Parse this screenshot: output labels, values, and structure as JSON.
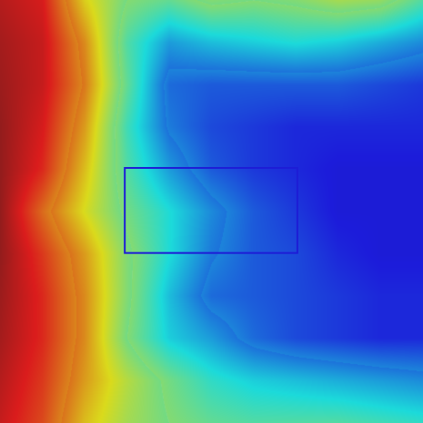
{
  "chart_data": {
    "type": "heatmap",
    "colormap": "jet",
    "value_range": [
      0,
      1
    ],
    "grid": false,
    "legend": "none",
    "rows": 11,
    "cols": 11,
    "values": [
      [
        0.92,
        0.88,
        0.64,
        0.5,
        0.46,
        0.52,
        0.5,
        0.52,
        0.56,
        0.54,
        0.44
      ],
      [
        0.94,
        0.9,
        0.72,
        0.44,
        0.3,
        0.34,
        0.36,
        0.38,
        0.36,
        0.32,
        0.28
      ],
      [
        0.95,
        0.9,
        0.74,
        0.46,
        0.22,
        0.2,
        0.2,
        0.2,
        0.2,
        0.18,
        0.16
      ],
      [
        0.96,
        0.88,
        0.7,
        0.42,
        0.24,
        0.18,
        0.16,
        0.14,
        0.14,
        0.14,
        0.14
      ],
      [
        0.96,
        0.86,
        0.66,
        0.44,
        0.3,
        0.2,
        0.16,
        0.14,
        0.12,
        0.12,
        0.12
      ],
      [
        0.96,
        0.78,
        0.62,
        0.48,
        0.38,
        0.28,
        0.2,
        0.16,
        0.12,
        0.12,
        0.12
      ],
      [
        0.96,
        0.84,
        0.7,
        0.52,
        0.38,
        0.26,
        0.2,
        0.18,
        0.14,
        0.12,
        0.12
      ],
      [
        0.95,
        0.86,
        0.72,
        0.52,
        0.34,
        0.22,
        0.2,
        0.18,
        0.16,
        0.14,
        0.14
      ],
      [
        0.94,
        0.86,
        0.72,
        0.5,
        0.36,
        0.3,
        0.22,
        0.18,
        0.16,
        0.14,
        0.14
      ],
      [
        0.92,
        0.84,
        0.7,
        0.58,
        0.48,
        0.4,
        0.36,
        0.34,
        0.32,
        0.3,
        0.28
      ],
      [
        0.9,
        0.82,
        0.66,
        0.56,
        0.5,
        0.46,
        0.44,
        0.44,
        0.44,
        0.42,
        0.4
      ]
    ],
    "annotations": [
      {
        "kind": "rectangle",
        "x_range": [
          0.295,
          0.703
        ],
        "y_range": [
          0.397,
          0.598
        ],
        "color": "#1d1dd6"
      }
    ]
  }
}
